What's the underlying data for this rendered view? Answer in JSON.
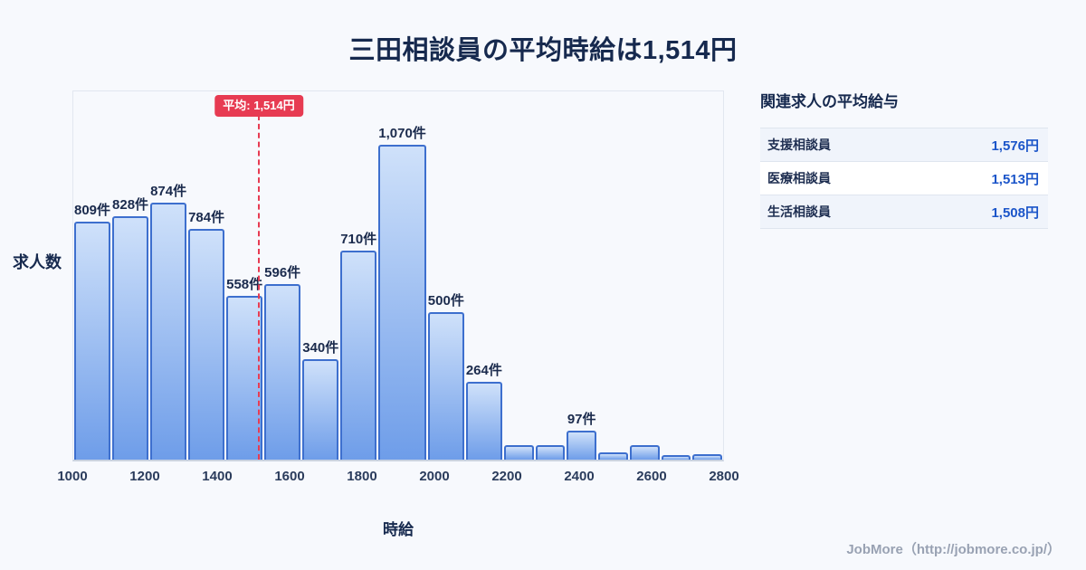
{
  "page": {
    "title": "三田相談員の平均時給は1,514円",
    "footer": "JobMore（http://jobmore.co.jp/）"
  },
  "chart_data": {
    "type": "bar",
    "title": "三田相談員の平均時給は1,514円",
    "xlabel": "時給",
    "ylabel": "求人数",
    "x_start": 1000,
    "bin_width": 100,
    "x_ticks": [
      1000,
      1200,
      1400,
      1600,
      1800,
      2000,
      2200,
      2400,
      2600,
      2800
    ],
    "values": [
      809,
      828,
      874,
      784,
      558,
      596,
      340,
      710,
      1070,
      500,
      264,
      50,
      48,
      97,
      25,
      50,
      15,
      18
    ],
    "labels": [
      "809件",
      "828件",
      "874件",
      "784件",
      "558件",
      "596件",
      "340件",
      "710件",
      "1,070件",
      "500件",
      "264件",
      "",
      "",
      "97件",
      "",
      "",
      "",
      ""
    ],
    "ymax": 1070,
    "grid": false,
    "legend": "none",
    "average": {
      "value": 1514,
      "label": "平均: 1,514円"
    }
  },
  "side_panel": {
    "title": "関連求人の平均給与",
    "rows": [
      {
        "label": "支援相談員",
        "value": "1,576円"
      },
      {
        "label": "医療相談員",
        "value": "1,513円"
      },
      {
        "label": "生活相談員",
        "value": "1,508円"
      }
    ]
  },
  "colors": {
    "background": "#f7f9fd",
    "title_text": "#16294e",
    "bar_fill_top": "#cfe1fa",
    "bar_fill_bottom": "#6e9de9",
    "bar_border": "#3d6fce",
    "average_red": "#e73b52",
    "value_blue": "#1b55c9",
    "footer_text": "#99a2b3"
  }
}
